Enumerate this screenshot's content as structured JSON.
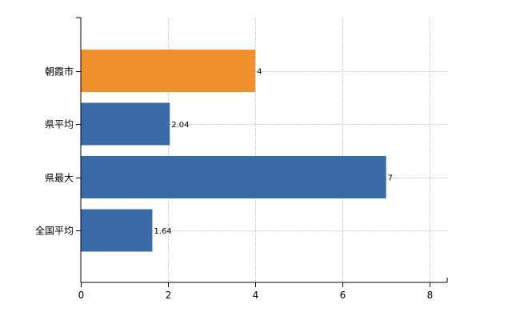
{
  "chart_data": {
    "type": "bar",
    "orientation": "horizontal",
    "categories": [
      "朝霞市",
      "県平均",
      "県最大",
      "全国平均"
    ],
    "values": [
      4,
      2.04,
      7,
      1.64
    ],
    "data_labels": [
      "4",
      "2.04",
      "7",
      "1.64"
    ],
    "colors": [
      "#f0902f",
      "#3a6ba8",
      "#3a6ba8",
      "#3a6ba8"
    ],
    "xlim": [
      0,
      8.4
    ],
    "xticks": [
      0,
      2,
      4,
      6,
      8
    ],
    "xtick_labels": [
      "0",
      "2",
      "4",
      "6",
      "8"
    ],
    "grid": true,
    "title": "",
    "xlabel": "",
    "ylabel": ""
  }
}
